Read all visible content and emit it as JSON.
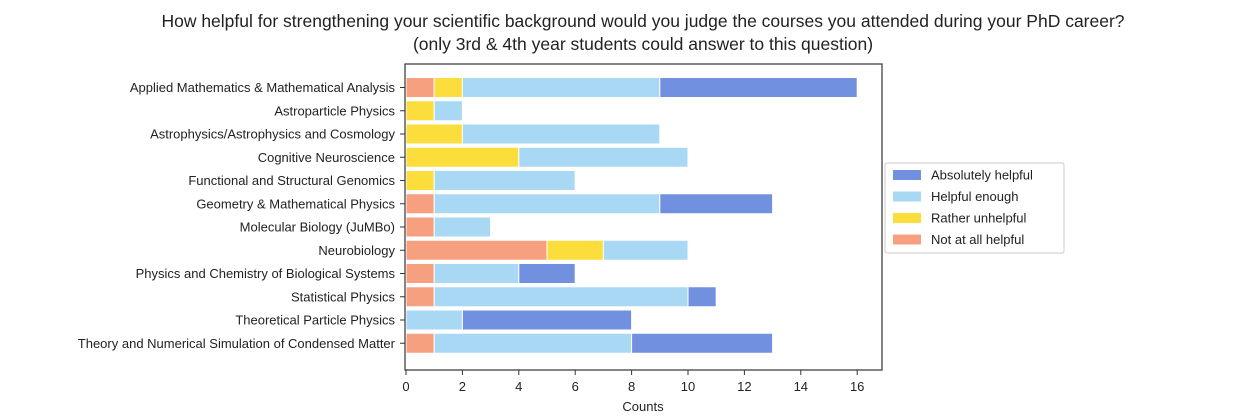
{
  "chart_data": {
    "type": "bar",
    "orientation": "horizontal",
    "stacked": true,
    "title": [
      "How helpful for strengthening your scientific background would you judge the courses you attended during your PhD career?",
      "(only 3rd & 4th year students could answer to this question)"
    ],
    "xlabel": "Counts",
    "ylabel": "",
    "xlim": [
      0,
      17
    ],
    "xticks": [
      0,
      2,
      4,
      6,
      8,
      10,
      12,
      14,
      16
    ],
    "grid": false,
    "legend_placement": "right",
    "categories": [
      "Applied Mathematics & Mathematical Analysis",
      "Astroparticle Physics",
      "Astrophysics/Astrophysics and Cosmology",
      "Cognitive Neuroscience",
      "Functional and Structural Genomics",
      "Geometry & Mathematical Physics",
      "Molecular Biology (JuMBo)",
      "Neurobiology",
      "Physics and Chemistry of Biological Systems",
      "Statistical Physics",
      "Theoretical Particle Physics",
      "Theory and Numerical Simulation of Condensed Matter"
    ],
    "series": [
      {
        "name": "Not at all helpful",
        "color": "#F7A07F",
        "values": [
          1,
          0,
          0,
          0,
          0,
          1,
          1,
          5,
          1,
          1,
          0,
          1
        ]
      },
      {
        "name": "Rather unhelpful",
        "color": "#FBDD3C",
        "values": [
          1,
          1,
          2,
          4,
          1,
          0,
          0,
          2,
          0,
          0,
          0,
          0
        ]
      },
      {
        "name": "Helpful enough",
        "color": "#A8D8F4",
        "values": [
          7,
          1,
          7,
          6,
          5,
          8,
          2,
          3,
          3,
          9,
          2,
          7
        ]
      },
      {
        "name": "Absolutely helpful",
        "color": "#7190E0",
        "values": [
          7,
          0,
          0,
          0,
          0,
          4,
          0,
          0,
          2,
          1,
          6,
          5
        ]
      }
    ],
    "legend_order": [
      "Absolutely helpful",
      "Helpful enough",
      "Rather unhelpful",
      "Not at all helpful"
    ]
  }
}
